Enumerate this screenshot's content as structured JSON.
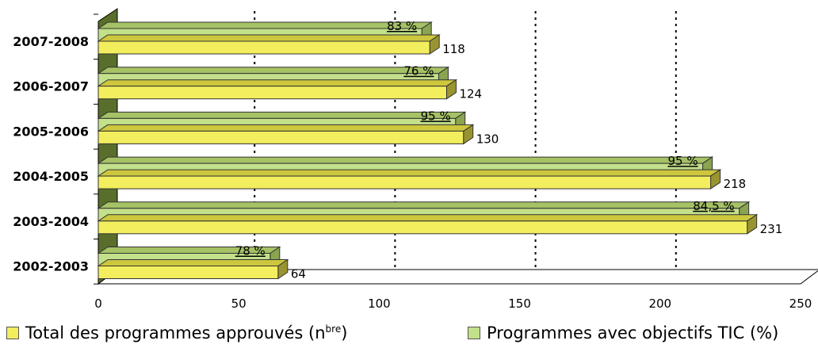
{
  "chart_data": {
    "type": "bar",
    "orientation": "horizontal",
    "categories": [
      "2002-2003",
      "2003-2004",
      "2004-2005",
      "2005-2006",
      "2006-2007",
      "2007-2008"
    ],
    "series": [
      {
        "name": "Total des programmes approuvés (nbre)",
        "values": [
          64,
          231,
          218,
          130,
          124,
          118
        ],
        "labels": [
          "64",
          "231",
          "218",
          "130",
          "124",
          "118"
        ],
        "color": "#f2ee5e"
      },
      {
        "name": "Programmes avec objectifs TIC (%)",
        "values": [
          78,
          84.5,
          95,
          95,
          76,
          83
        ],
        "labels": [
          "78 %",
          "84,5 %",
          "95 %",
          "95 %",
          "76 %",
          "83 %"
        ],
        "color": "#c3e08a"
      }
    ],
    "xlim": [
      0,
      250
    ],
    "xticks": [
      0,
      50,
      100,
      150,
      200,
      250
    ],
    "xtick_labels": [
      "0",
      "50",
      "100",
      "150",
      "200",
      "250"
    ],
    "gridlines": "dotted-vertical",
    "legend_position": "bottom",
    "style": "3d-bar"
  },
  "legend": {
    "item1_main": "Total des programmes approuvés (n",
    "item1_sup": "bre",
    "item1_end": ")",
    "item2": "Programmes avec objectifs TIC (%)"
  }
}
